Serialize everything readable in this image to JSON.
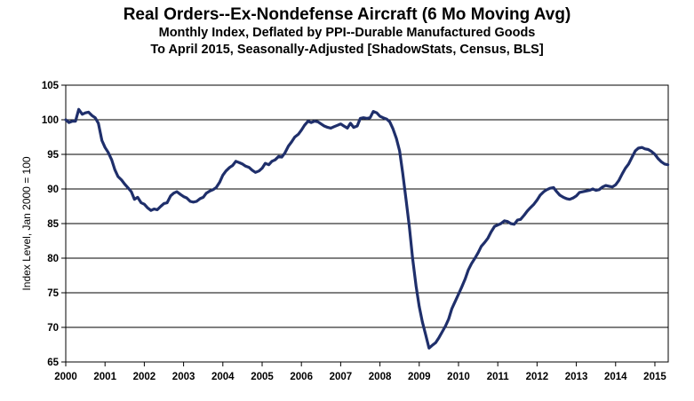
{
  "chart_data": {
    "type": "line",
    "title": "Real Orders--Ex-Nondefense Aircraft (6 Mo Moving Avg)",
    "subtitle_1": "Monthly Index, Deflated by PPI--Durable Manufactured Goods",
    "subtitle_2": "To April 2015, Seasonally-Adjusted [ShadowStats, Census, BLS]",
    "xlabel": "",
    "ylabel": "Index Level, Jan 2000 = 100",
    "xlim": [
      2000,
      2015.34
    ],
    "ylim": [
      65,
      105
    ],
    "grid": true,
    "line_color": "#1F2F6B",
    "x_ticks": [
      "2000",
      "2001",
      "2002",
      "2003",
      "2004",
      "2005",
      "2006",
      "2007",
      "2008",
      "2009",
      "2010",
      "2011",
      "2012",
      "2013",
      "2014",
      "2015"
    ],
    "y_ticks": [
      "65",
      "70",
      "75",
      "80",
      "85",
      "90",
      "95",
      "100",
      "105"
    ],
    "series": [
      {
        "points": [
          [
            2000.0,
            100.0
          ],
          [
            2000.08,
            99.6
          ],
          [
            2000.17,
            99.8
          ],
          [
            2000.25,
            99.8
          ],
          [
            2000.33,
            101.5
          ],
          [
            2000.42,
            100.8
          ],
          [
            2000.5,
            101.0
          ],
          [
            2000.58,
            101.1
          ],
          [
            2000.67,
            100.6
          ],
          [
            2000.75,
            100.3
          ],
          [
            2000.83,
            99.5
          ],
          [
            2000.92,
            97.0
          ],
          [
            2001.0,
            96.0
          ],
          [
            2001.08,
            95.3
          ],
          [
            2001.17,
            94.2
          ],
          [
            2001.25,
            92.8
          ],
          [
            2001.33,
            91.8
          ],
          [
            2001.42,
            91.3
          ],
          [
            2001.5,
            90.7
          ],
          [
            2001.58,
            90.2
          ],
          [
            2001.67,
            89.6
          ],
          [
            2001.75,
            88.5
          ],
          [
            2001.83,
            88.8
          ],
          [
            2001.92,
            88.0
          ],
          [
            2002.0,
            87.8
          ],
          [
            2002.08,
            87.3
          ],
          [
            2002.17,
            86.9
          ],
          [
            2002.25,
            87.1
          ],
          [
            2002.33,
            87.0
          ],
          [
            2002.42,
            87.5
          ],
          [
            2002.5,
            87.9
          ],
          [
            2002.58,
            88.0
          ],
          [
            2002.67,
            89.0
          ],
          [
            2002.75,
            89.4
          ],
          [
            2002.83,
            89.6
          ],
          [
            2002.92,
            89.2
          ],
          [
            2003.0,
            88.9
          ],
          [
            2003.08,
            88.7
          ],
          [
            2003.17,
            88.2
          ],
          [
            2003.25,
            88.1
          ],
          [
            2003.33,
            88.2
          ],
          [
            2003.42,
            88.6
          ],
          [
            2003.5,
            88.8
          ],
          [
            2003.58,
            89.4
          ],
          [
            2003.67,
            89.7
          ],
          [
            2003.75,
            89.9
          ],
          [
            2003.83,
            90.2
          ],
          [
            2003.92,
            91.0
          ],
          [
            2004.0,
            92.0
          ],
          [
            2004.08,
            92.6
          ],
          [
            2004.17,
            93.1
          ],
          [
            2004.25,
            93.4
          ],
          [
            2004.33,
            94.0
          ],
          [
            2004.42,
            93.8
          ],
          [
            2004.5,
            93.6
          ],
          [
            2004.58,
            93.3
          ],
          [
            2004.67,
            93.1
          ],
          [
            2004.75,
            92.7
          ],
          [
            2004.83,
            92.4
          ],
          [
            2004.92,
            92.6
          ],
          [
            2005.0,
            93.0
          ],
          [
            2005.08,
            93.7
          ],
          [
            2005.17,
            93.5
          ],
          [
            2005.25,
            94.0
          ],
          [
            2005.33,
            94.2
          ],
          [
            2005.42,
            94.7
          ],
          [
            2005.5,
            94.6
          ],
          [
            2005.58,
            95.2
          ],
          [
            2005.67,
            96.2
          ],
          [
            2005.75,
            96.8
          ],
          [
            2005.83,
            97.5
          ],
          [
            2005.92,
            97.9
          ],
          [
            2006.0,
            98.5
          ],
          [
            2006.08,
            99.2
          ],
          [
            2006.17,
            99.8
          ],
          [
            2006.25,
            99.6
          ],
          [
            2006.33,
            99.8
          ],
          [
            2006.42,
            99.7
          ],
          [
            2006.5,
            99.4
          ],
          [
            2006.58,
            99.1
          ],
          [
            2006.67,
            98.9
          ],
          [
            2006.75,
            98.8
          ],
          [
            2006.83,
            99.0
          ],
          [
            2006.92,
            99.2
          ],
          [
            2007.0,
            99.4
          ],
          [
            2007.08,
            99.1
          ],
          [
            2007.17,
            98.8
          ],
          [
            2007.25,
            99.5
          ],
          [
            2007.33,
            98.9
          ],
          [
            2007.42,
            99.1
          ],
          [
            2007.5,
            100.2
          ],
          [
            2007.58,
            100.3
          ],
          [
            2007.67,
            100.2
          ],
          [
            2007.75,
            100.3
          ],
          [
            2007.83,
            101.2
          ],
          [
            2007.92,
            101.0
          ],
          [
            2008.0,
            100.5
          ],
          [
            2008.08,
            100.3
          ],
          [
            2008.17,
            100.1
          ],
          [
            2008.25,
            99.7
          ],
          [
            2008.33,
            98.7
          ],
          [
            2008.42,
            97.3
          ],
          [
            2008.5,
            95.5
          ],
          [
            2008.58,
            92.3
          ],
          [
            2008.67,
            88.2
          ],
          [
            2008.75,
            84.5
          ],
          [
            2008.83,
            80.0
          ],
          [
            2008.92,
            76.0
          ],
          [
            2009.0,
            73.0
          ],
          [
            2009.08,
            70.8
          ],
          [
            2009.17,
            68.8
          ],
          [
            2009.25,
            67.0
          ],
          [
            2009.33,
            67.4
          ],
          [
            2009.42,
            67.8
          ],
          [
            2009.5,
            68.5
          ],
          [
            2009.58,
            69.3
          ],
          [
            2009.67,
            70.2
          ],
          [
            2009.75,
            71.2
          ],
          [
            2009.83,
            72.7
          ],
          [
            2009.92,
            73.8
          ],
          [
            2010.0,
            74.8
          ],
          [
            2010.08,
            75.8
          ],
          [
            2010.17,
            77.0
          ],
          [
            2010.25,
            78.3
          ],
          [
            2010.33,
            79.2
          ],
          [
            2010.42,
            80.0
          ],
          [
            2010.5,
            80.8
          ],
          [
            2010.58,
            81.7
          ],
          [
            2010.67,
            82.3
          ],
          [
            2010.75,
            82.9
          ],
          [
            2010.83,
            83.8
          ],
          [
            2010.92,
            84.6
          ],
          [
            2011.0,
            84.8
          ],
          [
            2011.08,
            85.0
          ],
          [
            2011.17,
            85.4
          ],
          [
            2011.25,
            85.3
          ],
          [
            2011.33,
            85.0
          ],
          [
            2011.42,
            84.9
          ],
          [
            2011.5,
            85.5
          ],
          [
            2011.58,
            85.6
          ],
          [
            2011.67,
            86.2
          ],
          [
            2011.75,
            86.8
          ],
          [
            2011.83,
            87.3
          ],
          [
            2011.92,
            87.8
          ],
          [
            2012.0,
            88.4
          ],
          [
            2012.08,
            89.1
          ],
          [
            2012.17,
            89.6
          ],
          [
            2012.25,
            89.9
          ],
          [
            2012.33,
            90.1
          ],
          [
            2012.42,
            90.2
          ],
          [
            2012.5,
            89.6
          ],
          [
            2012.58,
            89.1
          ],
          [
            2012.67,
            88.8
          ],
          [
            2012.75,
            88.6
          ],
          [
            2012.83,
            88.5
          ],
          [
            2012.92,
            88.7
          ],
          [
            2013.0,
            89.0
          ],
          [
            2013.08,
            89.5
          ],
          [
            2013.17,
            89.6
          ],
          [
            2013.25,
            89.7
          ],
          [
            2013.33,
            89.8
          ],
          [
            2013.42,
            90.0
          ],
          [
            2013.5,
            89.8
          ],
          [
            2013.58,
            89.9
          ],
          [
            2013.67,
            90.3
          ],
          [
            2013.75,
            90.5
          ],
          [
            2013.83,
            90.4
          ],
          [
            2013.92,
            90.3
          ],
          [
            2014.0,
            90.6
          ],
          [
            2014.08,
            91.2
          ],
          [
            2014.17,
            92.2
          ],
          [
            2014.25,
            93.0
          ],
          [
            2014.33,
            93.6
          ],
          [
            2014.42,
            94.6
          ],
          [
            2014.5,
            95.5
          ],
          [
            2014.58,
            95.9
          ],
          [
            2014.67,
            96.0
          ],
          [
            2014.75,
            95.8
          ],
          [
            2014.83,
            95.7
          ],
          [
            2014.92,
            95.4
          ],
          [
            2015.0,
            95.0
          ],
          [
            2015.08,
            94.4
          ],
          [
            2015.17,
            93.9
          ],
          [
            2015.25,
            93.6
          ],
          [
            2015.33,
            93.5
          ]
        ]
      }
    ]
  }
}
